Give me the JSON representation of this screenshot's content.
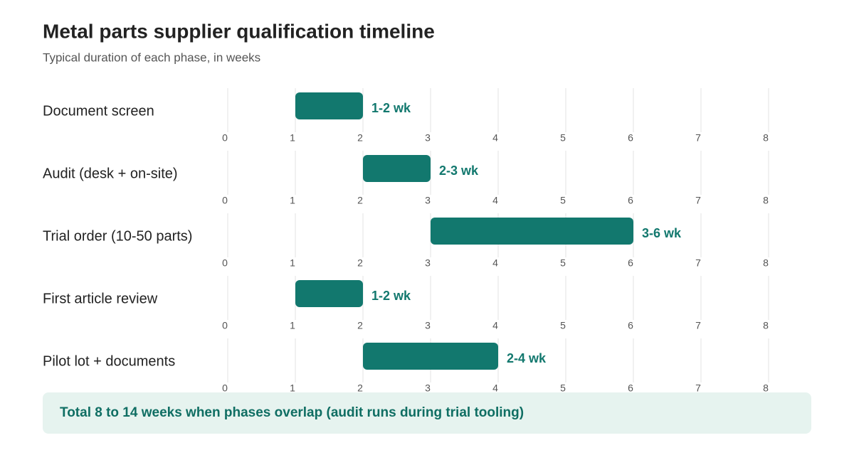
{
  "chart_data": {
    "type": "range_bar",
    "title": "Metal parts supplier qualification timeline",
    "subtitle": "Typical duration of each phase, in weeks",
    "categories": [
      "Document screen",
      "Audit (desk + on-site)",
      "Trial order (10-50 parts)",
      "First article review",
      "Pilot lot + documents"
    ],
    "starts": [
      1,
      2,
      3,
      1,
      2
    ],
    "ends": [
      2,
      3,
      6,
      2,
      4
    ],
    "value_labels": [
      "1-2 wk",
      "2-3 wk",
      "3-6 wk",
      "1-2 wk",
      "2-4 wk"
    ],
    "color": "#12786e",
    "xlim": [
      0,
      8
    ],
    "xticks": [
      0,
      1,
      2,
      3,
      4,
      5,
      6,
      7,
      8
    ],
    "grid": true,
    "annotation": "Total 8 to 14 weeks when phases overlap (audit runs during trial tooling)"
  }
}
